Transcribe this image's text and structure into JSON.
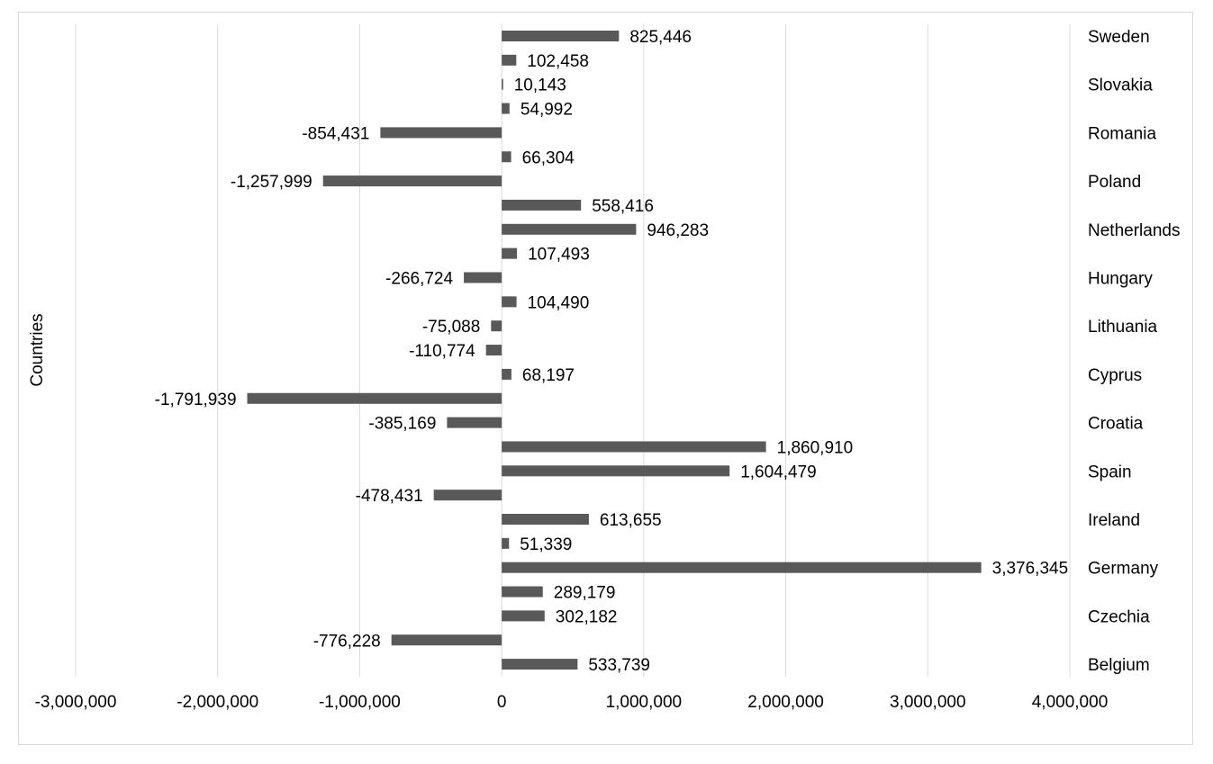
{
  "chart_data": {
    "type": "bar",
    "orientation": "horizontal",
    "title": "",
    "xlabel": "",
    "ylabel": "Countries",
    "xlim": [
      -3000000,
      4000000
    ],
    "x_ticks": [
      -3000000,
      -2000000,
      -1000000,
      0,
      1000000,
      2000000,
      3000000,
      4000000
    ],
    "x_tick_labels": [
      "-3,000,000",
      "-2,000,000",
      "-1,000,000",
      "0",
      "1,000,000",
      "2,000,000",
      "3,000,000",
      "4,000,000"
    ],
    "grid": "vertical",
    "legend": "none",
    "bar_color": "#595959",
    "categories": [
      "Sweden",
      "",
      "Slovakia",
      "",
      "Romania",
      "",
      "Poland",
      "",
      "Netherlands",
      "",
      "Hungary",
      "",
      "Lithuania",
      "",
      "Cyprus",
      "",
      "Croatia",
      "",
      "Spain",
      "",
      "Ireland",
      "",
      "Germany",
      "",
      "Czechia",
      "",
      "Belgium"
    ],
    "values": [
      825446,
      102458,
      10143,
      54992,
      -854431,
      66304,
      -1257999,
      558416,
      946283,
      107493,
      -266724,
      104490,
      -75088,
      -110774,
      68197,
      -1791939,
      -385169,
      1860910,
      1604479,
      -478431,
      613655,
      51339,
      3376345,
      289179,
      302182,
      -776228,
      533739
    ],
    "value_labels": [
      "825,446",
      "102,458",
      "10,143",
      "54,992",
      "-854,431",
      "66,304",
      "-1,257,999",
      "558,416",
      "946,283",
      "107,493",
      "-266,724",
      "104,490",
      "-75,088",
      "-110,774",
      "68,197",
      "-1,791,939",
      "-385,169",
      "1,860,910",
      "1,604,479",
      "-478,431",
      "613,655",
      "51,339",
      "3,376,345",
      "289,179",
      "302,182",
      "-776,228",
      "533,739"
    ]
  }
}
